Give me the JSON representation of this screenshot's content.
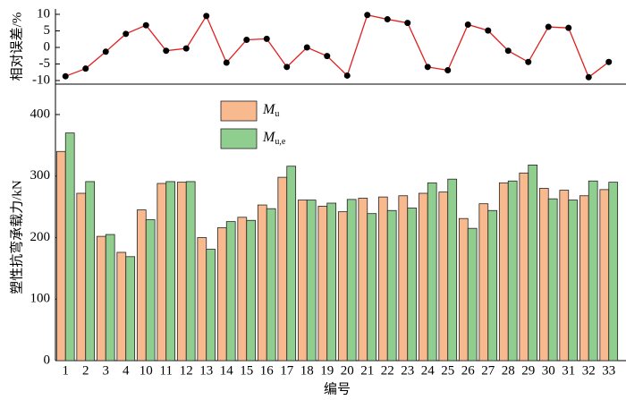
{
  "chart_data": [
    {
      "type": "line",
      "y_label": "相对误差/%",
      "categories": [
        "1",
        "2",
        "3",
        "4",
        "10",
        "11",
        "12",
        "13",
        "14",
        "15",
        "16",
        "17",
        "18",
        "19",
        "20",
        "21",
        "22",
        "23",
        "24",
        "25",
        "26",
        "27",
        "28",
        "29",
        "30",
        "31",
        "32",
        "33"
      ],
      "values": [
        -8.7,
        -6.4,
        -1.3,
        4.1,
        6.7,
        -1,
        -0.3,
        9.5,
        -4.6,
        2.3,
        2.6,
        -5.9,
        0,
        -2.6,
        -8.5,
        9.8,
        8.5,
        7.4,
        -5.9,
        -6.9,
        6.9,
        5.1,
        -1,
        -4.4,
        6.2,
        5.9,
        -9,
        -4.4
      ],
      "color": "#e02020",
      "marker_color": "#000000",
      "ylim": [
        -10,
        10
      ],
      "yticks": [
        -10,
        -5,
        0,
        5,
        10
      ]
    },
    {
      "type": "bar",
      "y_label": "塑性抗弯承载力/kN",
      "x_label": "编号",
      "categories": [
        "1",
        "2",
        "3",
        "4",
        "10",
        "11",
        "12",
        "13",
        "14",
        "15",
        "16",
        "17",
        "18",
        "19",
        "20",
        "21",
        "22",
        "23",
        "24",
        "25",
        "26",
        "27",
        "28",
        "29",
        "30",
        "31",
        "32",
        "33"
      ],
      "series": [
        {
          "name": "Mu",
          "color": "#f8b98e",
          "values": [
            340,
            272,
            202,
            176,
            245,
            288,
            290,
            200,
            216,
            233,
            253,
            298,
            261,
            251,
            242,
            264,
            266,
            268,
            272,
            274,
            231,
            255,
            289,
            305,
            280,
            277,
            268,
            278
          ]
        },
        {
          "name": "Mu,e",
          "color": "#90ce90",
          "values": [
            370,
            291,
            205,
            169,
            229,
            291,
            291,
            181,
            226,
            228,
            247,
            316,
            261,
            256,
            262,
            239,
            244,
            248,
            289,
            295,
            215,
            244,
            292,
            318,
            263,
            261,
            292,
            290
          ]
        }
      ],
      "ylim": [
        0,
        400
      ],
      "yticks": [
        0,
        100,
        200,
        300,
        400
      ]
    }
  ]
}
